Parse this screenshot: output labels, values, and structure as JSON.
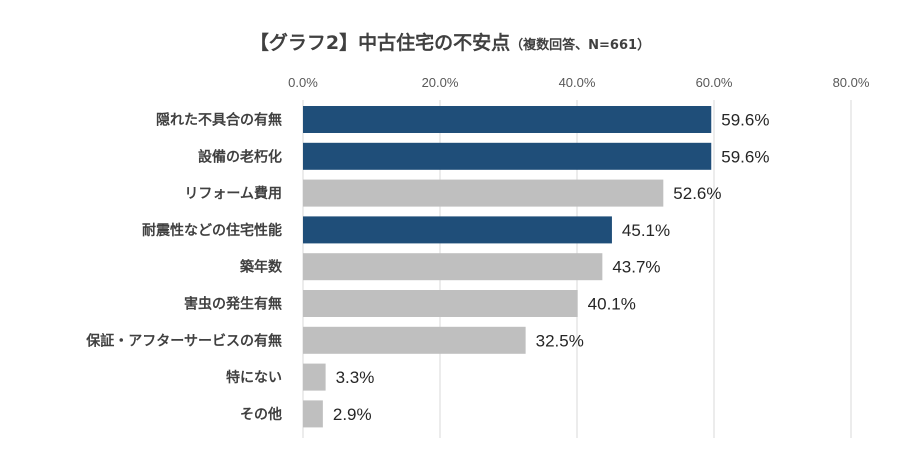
{
  "chart_data": {
    "type": "bar",
    "orientation": "horizontal",
    "title": "【グラフ2】中古住宅の不安点",
    "subtitle": "（複数回答、N=661）",
    "categories": [
      "隠れた不具合の有無",
      "設備の老朽化",
      "リフォーム費用",
      "耐震性などの住宅性能",
      "築年数",
      "害虫の発生有無",
      "保証・アフターサービスの有無",
      "特にない",
      "その他"
    ],
    "values": [
      59.6,
      59.6,
      52.6,
      45.1,
      43.7,
      40.1,
      32.5,
      3.3,
      2.9
    ],
    "value_labels": [
      "59.6%",
      "59.6%",
      "52.6%",
      "45.1%",
      "43.7%",
      "40.1%",
      "32.5%",
      "3.3%",
      "2.9%"
    ],
    "highlighted": [
      true,
      true,
      false,
      true,
      false,
      false,
      false,
      false,
      false
    ],
    "xlim": [
      0,
      80
    ],
    "x_ticks": [
      "0.0%",
      "20.0%",
      "40.0%",
      "60.0%",
      "80.0%"
    ],
    "x_axis_position": "top",
    "grid": true,
    "colors": {
      "highlight": "#1f4e79",
      "normal": "#bfbfbf"
    }
  }
}
